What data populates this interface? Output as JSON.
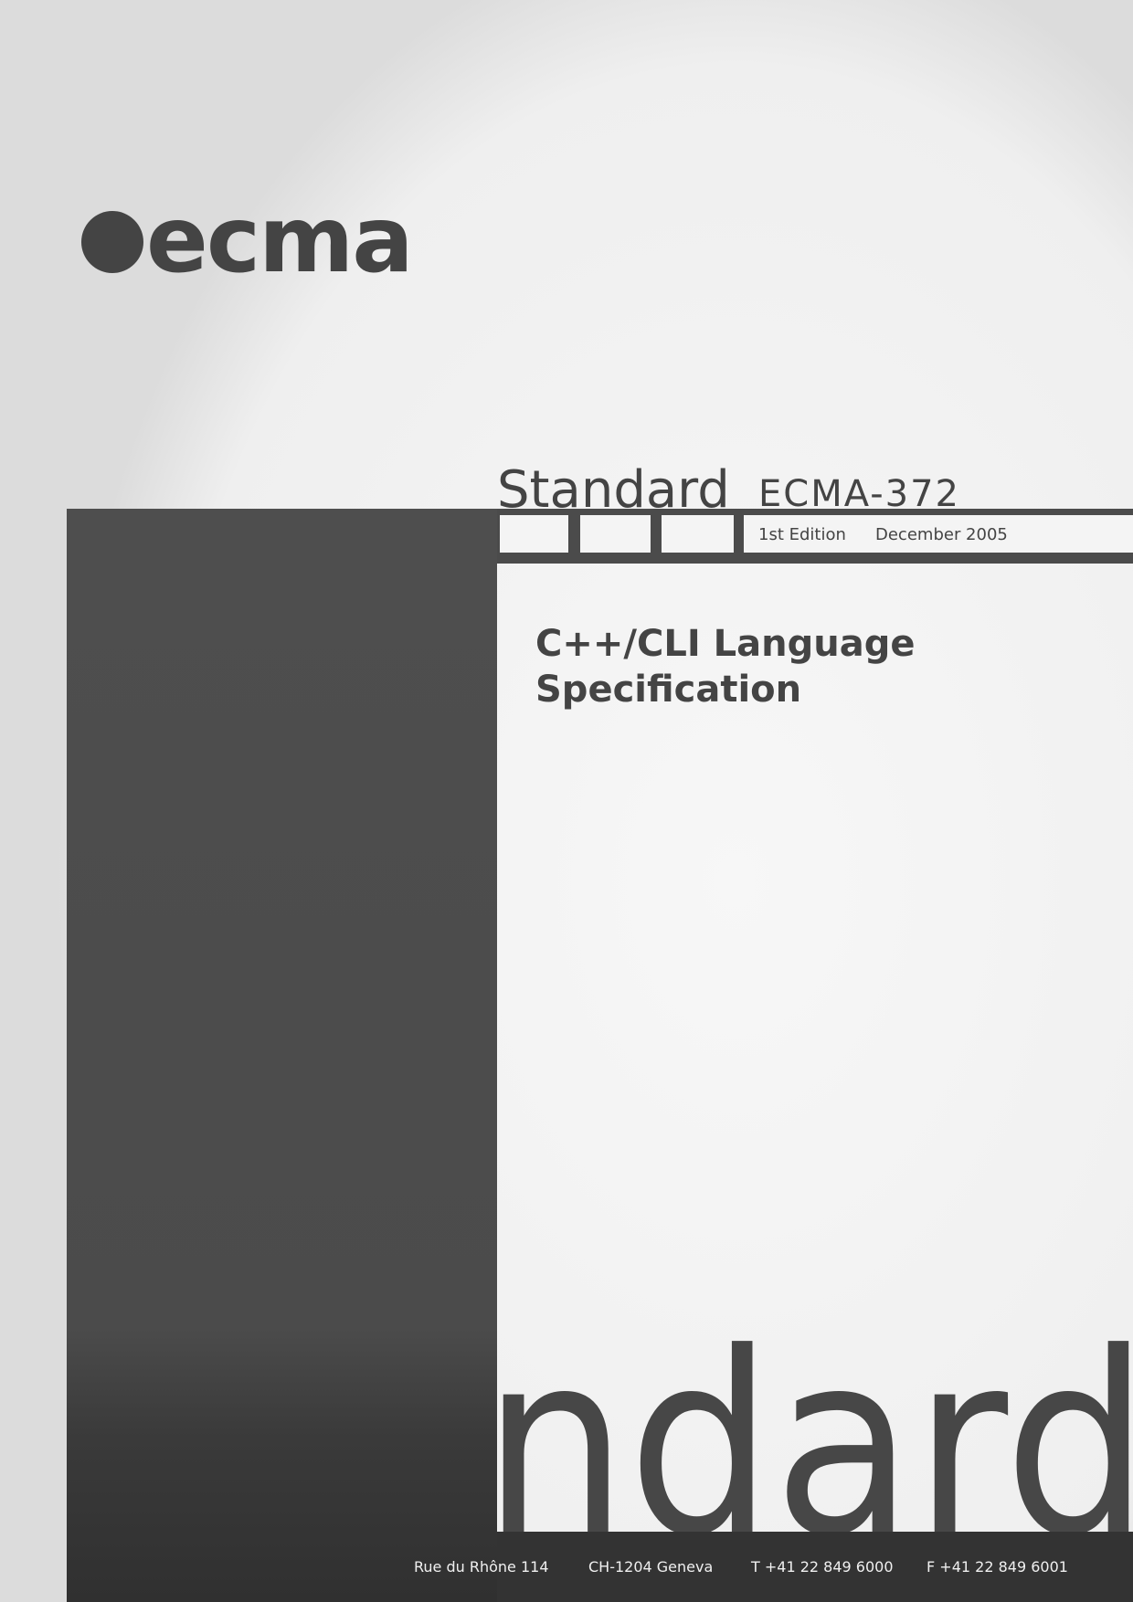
{
  "logo": {
    "text": "ecma"
  },
  "header": {
    "label": "Standard",
    "number": "ECMA-372",
    "edition": "1st Edition",
    "date": "December 2005"
  },
  "title": {
    "lines": [
      "C++/CLI Language",
      "Specification"
    ]
  },
  "background_word": "ndard",
  "footer": {
    "address": "Rue du Rhône 114",
    "city": "CH-1204 Geneva",
    "phone": "T +41 22 849 6000",
    "fax": "F +41 22 849 6001"
  }
}
